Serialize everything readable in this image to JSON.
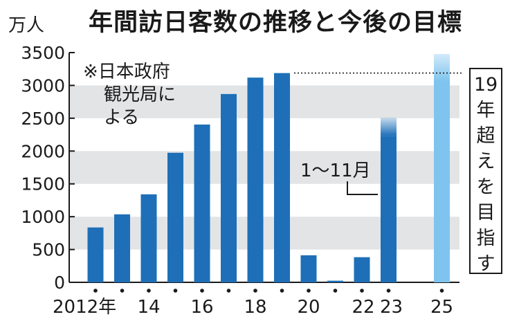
{
  "title": "年間訪日客数の推移と今後の目標",
  "unit": "万人",
  "note": [
    "※日本政府",
    "観光局に",
    "よる"
  ],
  "sub_label": "1～11月",
  "goal_text": [
    "19",
    "年",
    "超",
    "え",
    "を",
    "目",
    "指",
    "す"
  ],
  "colors": {
    "bar": "#1e6fb8",
    "target": "#7fc4ee",
    "band": "#e3e4e6"
  },
  "chart_data": {
    "type": "bar",
    "title": "年間訪日客数の推移と今後の目標",
    "ylabel": "万人",
    "ylim": [
      0,
      3500
    ],
    "yticks": [
      0,
      500,
      1000,
      1500,
      2000,
      2500,
      3000,
      3500
    ],
    "x": [
      2012,
      2013,
      2014,
      2015,
      2016,
      2017,
      2018,
      2019,
      2020,
      2021,
      2022,
      2023,
      2025
    ],
    "values": [
      836,
      1036,
      1341,
      1974,
      2404,
      2869,
      3119,
      3188,
      412,
      25,
      383,
      2233,
      3188
    ],
    "xtick_labels": [
      {
        "x": 2012,
        "label": "2012年"
      },
      {
        "x": 2014,
        "label": "14"
      },
      {
        "x": 2016,
        "label": "16"
      },
      {
        "x": 2018,
        "label": "18"
      },
      {
        "x": 2020,
        "label": "20"
      },
      {
        "x": 2022,
        "label": "22"
      },
      {
        "x": 2023,
        "label": "23"
      },
      {
        "x": 2025,
        "label": "25"
      }
    ],
    "partial_year": 2023,
    "target_year": 2025,
    "grid": "horizontal bands"
  }
}
